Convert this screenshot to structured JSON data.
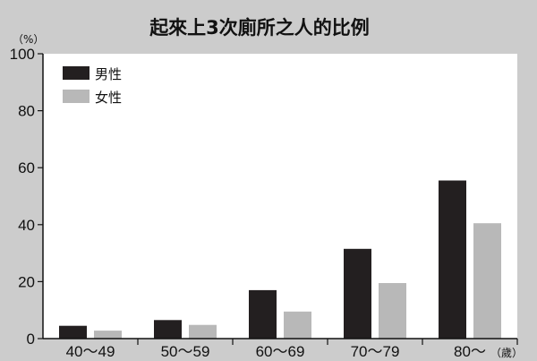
{
  "chart_data": {
    "type": "bar",
    "title": "起來上3次廁所之人的比例",
    "y_unit": "（%）",
    "x_unit": "（歲）",
    "categories": [
      "40～49",
      "50～59",
      "60～69",
      "70～79",
      "80～"
    ],
    "series": [
      {
        "name": "男性",
        "color": "#231f20",
        "values": [
          4.5,
          6.5,
          17,
          31.5,
          55.5
        ]
      },
      {
        "name": "女性",
        "color": "#b8b8b8",
        "values": [
          2.8,
          4.8,
          9.5,
          19.5,
          40.5
        ]
      }
    ],
    "ylim": [
      0,
      100
    ],
    "yticks": [
      0,
      20,
      40,
      60,
      80,
      100
    ],
    "grid": false,
    "legend_position": "top-left",
    "background_color": "#cccccc",
    "plot_background_color": "#ffffff"
  }
}
